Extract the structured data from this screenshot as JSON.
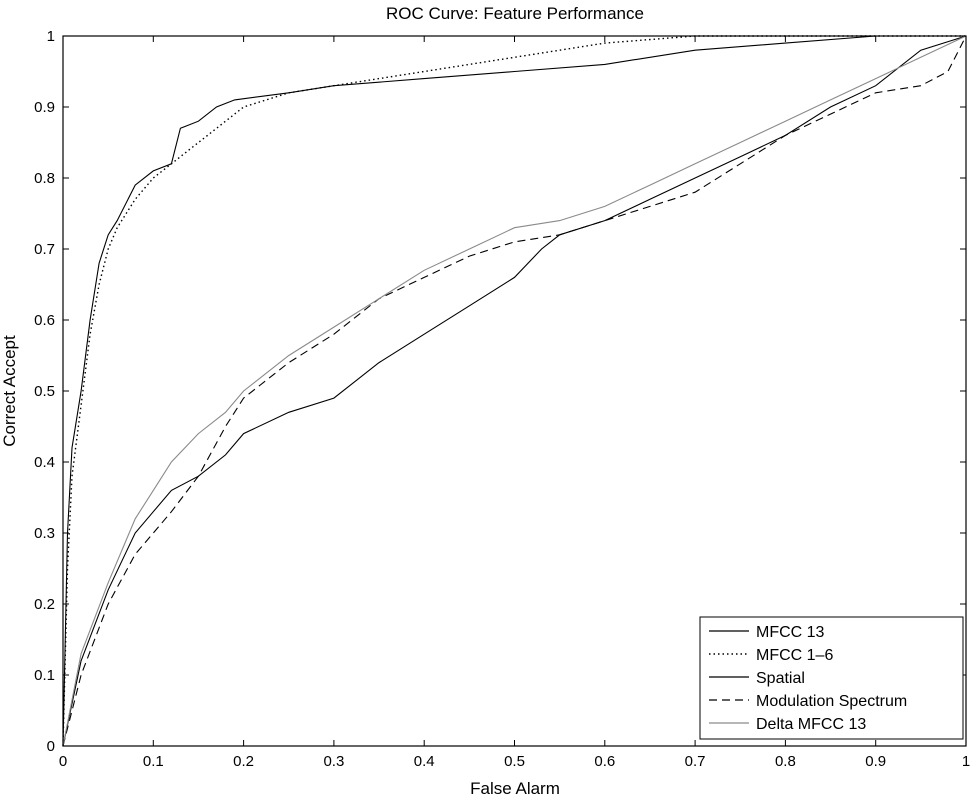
{
  "chart_data": {
    "type": "line",
    "title": "ROC Curve: Feature Performance",
    "xlabel": "False Alarm",
    "ylabel": "Correct Accept",
    "xlim": [
      0,
      1
    ],
    "ylim": [
      0,
      1
    ],
    "grid": false,
    "legend_position": "bottom-right",
    "xticks": [
      "0",
      "0.1",
      "0.2",
      "0.3",
      "0.4",
      "0.5",
      "0.6",
      "0.7",
      "0.8",
      "0.9",
      "1"
    ],
    "yticks": [
      "0",
      "0.1",
      "0.2",
      "0.3",
      "0.4",
      "0.5",
      "0.6",
      "0.7",
      "0.8",
      "0.9",
      "1"
    ],
    "series": [
      {
        "name": "MFCC 13",
        "color": "#000000",
        "style": "solid",
        "points": [
          [
            0,
            0
          ],
          [
            0.005,
            0.3
          ],
          [
            0.01,
            0.42
          ],
          [
            0.02,
            0.5
          ],
          [
            0.03,
            0.6
          ],
          [
            0.04,
            0.68
          ],
          [
            0.05,
            0.72
          ],
          [
            0.06,
            0.74
          ],
          [
            0.08,
            0.79
          ],
          [
            0.1,
            0.81
          ],
          [
            0.12,
            0.82
          ],
          [
            0.13,
            0.87
          ],
          [
            0.15,
            0.88
          ],
          [
            0.17,
            0.9
          ],
          [
            0.19,
            0.91
          ],
          [
            0.25,
            0.92
          ],
          [
            0.3,
            0.93
          ],
          [
            0.4,
            0.94
          ],
          [
            0.5,
            0.95
          ],
          [
            0.6,
            0.96
          ],
          [
            0.7,
            0.98
          ],
          [
            0.8,
            0.99
          ],
          [
            0.9,
            1.0
          ],
          [
            1.0,
            1.0
          ]
        ]
      },
      {
        "name": "MFCC 1–6",
        "color": "#000000",
        "style": "dotted",
        "points": [
          [
            0,
            0
          ],
          [
            0.005,
            0.25
          ],
          [
            0.01,
            0.38
          ],
          [
            0.02,
            0.48
          ],
          [
            0.03,
            0.58
          ],
          [
            0.04,
            0.65
          ],
          [
            0.05,
            0.7
          ],
          [
            0.06,
            0.73
          ],
          [
            0.08,
            0.77
          ],
          [
            0.1,
            0.8
          ],
          [
            0.12,
            0.82
          ],
          [
            0.14,
            0.84
          ],
          [
            0.16,
            0.86
          ],
          [
            0.2,
            0.9
          ],
          [
            0.25,
            0.92
          ],
          [
            0.3,
            0.93
          ],
          [
            0.4,
            0.95
          ],
          [
            0.5,
            0.97
          ],
          [
            0.6,
            0.99
          ],
          [
            0.7,
            1.0
          ],
          [
            1.0,
            1.0
          ]
        ]
      },
      {
        "name": "Spatial",
        "color": "#000000",
        "style": "solid",
        "points": [
          [
            0,
            0
          ],
          [
            0.02,
            0.12
          ],
          [
            0.05,
            0.22
          ],
          [
            0.08,
            0.3
          ],
          [
            0.1,
            0.33
          ],
          [
            0.12,
            0.36
          ],
          [
            0.15,
            0.38
          ],
          [
            0.18,
            0.41
          ],
          [
            0.2,
            0.44
          ],
          [
            0.25,
            0.47
          ],
          [
            0.3,
            0.49
          ],
          [
            0.35,
            0.54
          ],
          [
            0.4,
            0.58
          ],
          [
            0.45,
            0.62
          ],
          [
            0.5,
            0.66
          ],
          [
            0.53,
            0.7
          ],
          [
            0.55,
            0.72
          ],
          [
            0.6,
            0.74
          ],
          [
            0.65,
            0.77
          ],
          [
            0.7,
            0.8
          ],
          [
            0.75,
            0.83
          ],
          [
            0.8,
            0.86
          ],
          [
            0.85,
            0.9
          ],
          [
            0.9,
            0.93
          ],
          [
            0.95,
            0.98
          ],
          [
            1.0,
            1.0
          ]
        ]
      },
      {
        "name": "Modulation Spectrum",
        "color": "#000000",
        "style": "dashed",
        "points": [
          [
            0,
            0
          ],
          [
            0.02,
            0.1
          ],
          [
            0.05,
            0.2
          ],
          [
            0.08,
            0.27
          ],
          [
            0.1,
            0.3
          ],
          [
            0.12,
            0.33
          ],
          [
            0.15,
            0.38
          ],
          [
            0.18,
            0.45
          ],
          [
            0.2,
            0.49
          ],
          [
            0.25,
            0.54
          ],
          [
            0.3,
            0.58
          ],
          [
            0.35,
            0.63
          ],
          [
            0.4,
            0.66
          ],
          [
            0.45,
            0.69
          ],
          [
            0.5,
            0.71
          ],
          [
            0.55,
            0.72
          ],
          [
            0.6,
            0.74
          ],
          [
            0.65,
            0.76
          ],
          [
            0.7,
            0.78
          ],
          [
            0.75,
            0.82
          ],
          [
            0.8,
            0.86
          ],
          [
            0.85,
            0.89
          ],
          [
            0.9,
            0.92
          ],
          [
            0.95,
            0.93
          ],
          [
            0.98,
            0.95
          ],
          [
            1.0,
            1.0
          ]
        ]
      },
      {
        "name": "Delta MFCC 13",
        "color": "#8a8a8a",
        "style": "solid",
        "points": [
          [
            0,
            0
          ],
          [
            0.02,
            0.13
          ],
          [
            0.05,
            0.23
          ],
          [
            0.08,
            0.32
          ],
          [
            0.1,
            0.36
          ],
          [
            0.12,
            0.4
          ],
          [
            0.15,
            0.44
          ],
          [
            0.18,
            0.47
          ],
          [
            0.2,
            0.5
          ],
          [
            0.25,
            0.55
          ],
          [
            0.3,
            0.59
          ],
          [
            0.35,
            0.63
          ],
          [
            0.4,
            0.67
          ],
          [
            0.45,
            0.7
          ],
          [
            0.5,
            0.73
          ],
          [
            0.55,
            0.74
          ],
          [
            0.6,
            0.76
          ],
          [
            0.65,
            0.79
          ],
          [
            0.7,
            0.82
          ],
          [
            0.75,
            0.85
          ],
          [
            0.8,
            0.88
          ],
          [
            0.85,
            0.91
          ],
          [
            0.9,
            0.94
          ],
          [
            0.95,
            0.97
          ],
          [
            1.0,
            1.0
          ]
        ]
      }
    ]
  }
}
